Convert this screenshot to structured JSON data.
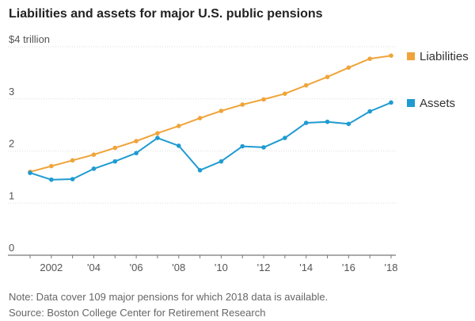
{
  "chart_data": {
    "type": "line",
    "title": "Liabilities and assets for major U.S. public pensions",
    "y_unit_label": "$4 trillion",
    "ylim": [
      0,
      4
    ],
    "yticks": [
      {
        "value": 0,
        "label": "0"
      },
      {
        "value": 1,
        "label": "1"
      },
      {
        "value": 2,
        "label": "2"
      },
      {
        "value": 3,
        "label": "3"
      },
      {
        "value": 4,
        "label": "$4 trillion"
      }
    ],
    "xlim": [
      2001,
      2018
    ],
    "xticks": [
      {
        "value": 2002,
        "label": "2002"
      },
      {
        "value": 2004,
        "label": "'04"
      },
      {
        "value": 2006,
        "label": "'06"
      },
      {
        "value": 2008,
        "label": "'08"
      },
      {
        "value": 2010,
        "label": "'10"
      },
      {
        "value": 2012,
        "label": "'12"
      },
      {
        "value": 2014,
        "label": "'14"
      },
      {
        "value": 2016,
        "label": "'16"
      },
      {
        "value": 2018,
        "label": "'18"
      }
    ],
    "x": [
      2001,
      2002,
      2003,
      2004,
      2005,
      2006,
      2007,
      2008,
      2009,
      2010,
      2011,
      2012,
      2013,
      2014,
      2015,
      2016,
      2017,
      2018
    ],
    "series": [
      {
        "name": "Liabilities",
        "color": "#f0a43a",
        "values": [
          1.6,
          1.71,
          1.82,
          1.93,
          2.06,
          2.19,
          2.34,
          2.48,
          2.63,
          2.77,
          2.89,
          2.99,
          3.1,
          3.26,
          3.42,
          3.6,
          3.77,
          3.83
        ]
      },
      {
        "name": "Assets",
        "color": "#1f9bd1",
        "values": [
          1.58,
          1.45,
          1.46,
          1.66,
          1.8,
          1.96,
          2.25,
          2.1,
          1.63,
          1.8,
          2.09,
          2.07,
          2.25,
          2.54,
          2.56,
          2.52,
          2.76,
          2.93
        ]
      }
    ],
    "grid": true,
    "legend": "right"
  },
  "footer": {
    "note": "Note: Data cover 109 major pensions for which 2018 data is available.",
    "source": "Source: Boston College Center for Retirement Research"
  }
}
